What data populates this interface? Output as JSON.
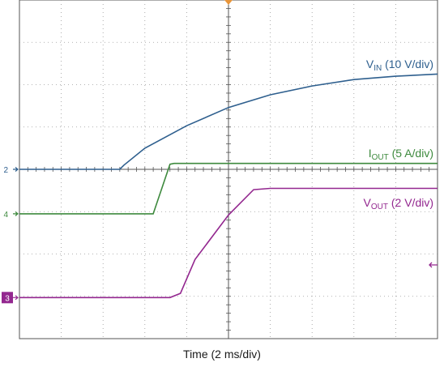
{
  "chart_data": {
    "type": "line",
    "xlabel": "Time (2 ms/div)",
    "x_divisions": 10,
    "y_divisions": 8,
    "x_range_div": [
      0,
      10
    ],
    "grid": true,
    "trigger_marker_color": "#e8953a",
    "series": [
      {
        "name": "VIN (10 V/div)",
        "label_main": "V",
        "label_sub": "IN",
        "label_rest": " (10 V/div)",
        "channel": "2",
        "color": "#2e5f8e",
        "ground_level_div": 4.0,
        "points_div": [
          [
            0,
            0
          ],
          [
            2.4,
            0
          ],
          [
            2.5,
            0.1
          ],
          [
            3,
            0.5
          ],
          [
            4,
            1.03
          ],
          [
            5,
            1.46
          ],
          [
            6,
            1.76
          ],
          [
            7,
            1.97
          ],
          [
            8,
            2.12
          ],
          [
            9,
            2.2
          ],
          [
            10,
            2.25
          ]
        ]
      },
      {
        "name": "IOUT (5 A/div)",
        "label_main": "I",
        "label_sub": "OUT",
        "label_rest": " (5 A/div)",
        "channel": "4",
        "color": "#3e8a3e",
        "ground_level_div": 2.95,
        "points_div": [
          [
            0,
            0
          ],
          [
            3.2,
            0
          ],
          [
            3.6,
            1.17
          ],
          [
            3.7,
            1.19
          ],
          [
            10,
            1.19
          ]
        ]
      },
      {
        "name": "VOUT (2 V/div)",
        "label_main": "V",
        "label_sub": "OUT",
        "label_rest": " (2 V/div)",
        "channel": "3",
        "color": "#93278f",
        "ground_level_div": 0.97,
        "points_div": [
          [
            0,
            0
          ],
          [
            3.6,
            0
          ],
          [
            3.85,
            0.1
          ],
          [
            4.2,
            0.9
          ],
          [
            5,
            1.95
          ],
          [
            5.6,
            2.55
          ],
          [
            6,
            2.58
          ],
          [
            10,
            2.58
          ]
        ]
      }
    ]
  }
}
